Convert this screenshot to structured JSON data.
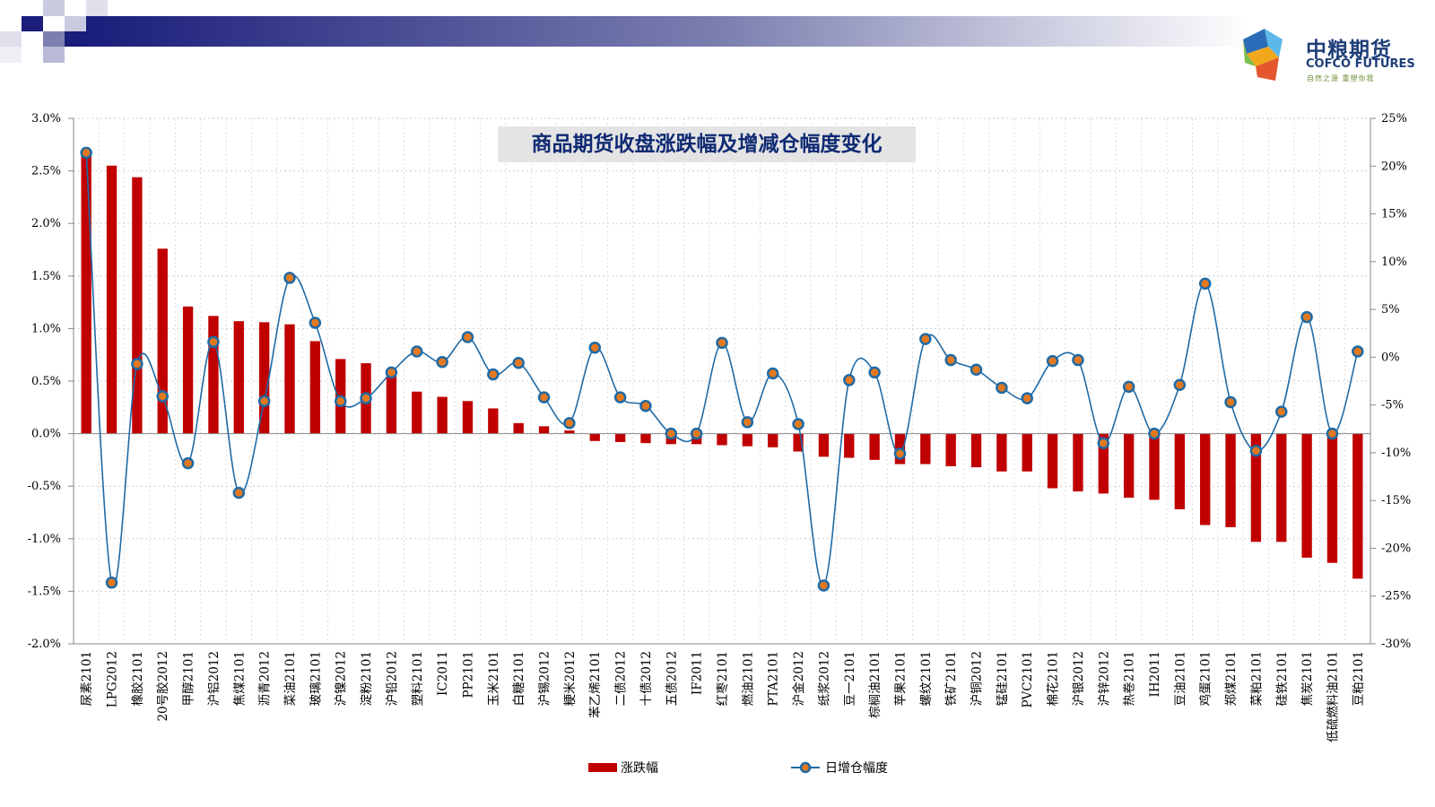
{
  "brand": {
    "name_cn": "中粮期货",
    "name_en": "COFCO FUTURES",
    "slogan": "自然之源 重塑你我"
  },
  "colors": {
    "bar": "#c00000",
    "line": "#1f6aa5",
    "marker_fill": "#e3791f",
    "title_text": "#0f2a73",
    "title_bg": "#e4e4e4",
    "banner_dark": "#1a1d7a"
  },
  "chart_data": {
    "type": "bar",
    "title": "商品期货收盘涨跌幅及增减仓幅度变化",
    "categories": [
      "尿素2101",
      "LPG2012",
      "橡胶2101",
      "20号胶2012",
      "甲醇2101",
      "沪铝2012",
      "焦煤2101",
      "沥青2012",
      "菜油2101",
      "玻璃2101",
      "沪镍2012",
      "淀粉2101",
      "沪铅2012",
      "塑料2101",
      "IC2011",
      "PP2101",
      "玉米2101",
      "白糖2101",
      "沪锡2012",
      "粳米2012",
      "苯乙烯2101",
      "二债2012",
      "十债2012",
      "五债2012",
      "IF2011",
      "红枣2101",
      "燃油2101",
      "PTA2101",
      "沪金2012",
      "纸浆2012",
      "豆一2101",
      "棕榈油2101",
      "苹果2101",
      "螺纹2101",
      "铁矿2101",
      "沪铜2012",
      "锰硅2101",
      "PVC2101",
      "棉花2101",
      "沪银2012",
      "沪锌2012",
      "热卷2101",
      "IH2011",
      "豆油2101",
      "鸡蛋2101",
      "郑煤2101",
      "菜粕2101",
      "硅铁2101",
      "焦炭2101",
      "低硫燃料油2101",
      "豆粕2101"
    ],
    "series": [
      {
        "name": "涨跌幅",
        "type": "bar",
        "axis": "left",
        "values": [
          2.68,
          2.55,
          2.44,
          1.76,
          1.21,
          1.12,
          1.07,
          1.06,
          1.04,
          0.88,
          0.71,
          0.67,
          0.57,
          0.4,
          0.35,
          0.31,
          0.24,
          0.1,
          0.07,
          0.03,
          -0.07,
          -0.08,
          -0.09,
          -0.1,
          -0.1,
          -0.11,
          -0.12,
          -0.13,
          -0.17,
          -0.22,
          -0.23,
          -0.25,
          -0.29,
          -0.29,
          -0.31,
          -0.32,
          -0.36,
          -0.36,
          -0.52,
          -0.55,
          -0.57,
          -0.61,
          -0.63,
          -0.72,
          -0.87,
          -0.89,
          -1.03,
          -1.03,
          -1.18,
          -1.23,
          -1.38
        ]
      },
      {
        "name": "日增仓幅度",
        "type": "line",
        "axis": "right",
        "values": [
          21.4,
          -23.6,
          -0.7,
          -4.1,
          -11.1,
          1.6,
          -14.2,
          -4.6,
          8.3,
          3.6,
          -4.6,
          -4.3,
          -1.6,
          0.6,
          -0.5,
          2.1,
          -1.8,
          -0.6,
          -4.2,
          -6.9,
          1.0,
          -4.2,
          -5.1,
          -8.0,
          -8.0,
          1.5,
          -6.8,
          -1.7,
          -7.0,
          -23.9,
          -2.4,
          -1.6,
          -10.1,
          1.9,
          -0.3,
          -1.3,
          -3.2,
          -4.3,
          -0.4,
          -0.3,
          -9.0,
          -3.1,
          -8.0,
          -2.9,
          7.7,
          -4.7,
          -9.8,
          -5.7,
          4.2,
          -8.0,
          0.6
        ]
      }
    ],
    "y_left": {
      "min": -2.0,
      "max": 3.0,
      "step": 0.5,
      "format": "percent",
      "decimals": 1
    },
    "y_right": {
      "min": -30,
      "max": 25,
      "step": 5,
      "format": "percent",
      "decimals": 0
    },
    "grid": true,
    "legend_position": "bottom-center"
  }
}
